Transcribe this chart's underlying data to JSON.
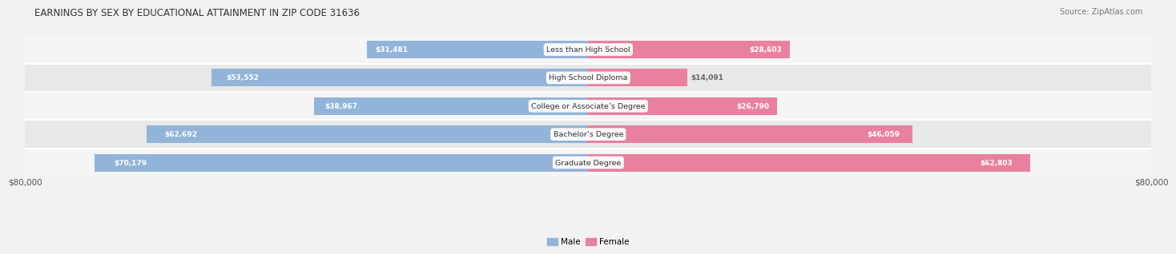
{
  "title": "EARNINGS BY SEX BY EDUCATIONAL ATTAINMENT IN ZIP CODE 31636",
  "source": "Source: ZipAtlas.com",
  "categories": [
    "Less than High School",
    "High School Diploma",
    "College or Associate’s Degree",
    "Bachelor’s Degree",
    "Graduate Degree"
  ],
  "male_values": [
    31481,
    53552,
    38967,
    62692,
    70179
  ],
  "female_values": [
    28603,
    14091,
    26790,
    46059,
    62803
  ],
  "male_color": "#92b4d8",
  "female_color": "#e8809e",
  "max_val": 80000,
  "bg_color": "#f2f2f2",
  "row_colors": [
    "#f5f5f5",
    "#e8e8e8"
  ],
  "title_fontsize": 8.5,
  "source_fontsize": 7,
  "axis_label": "$80,000",
  "bar_height": 0.62
}
